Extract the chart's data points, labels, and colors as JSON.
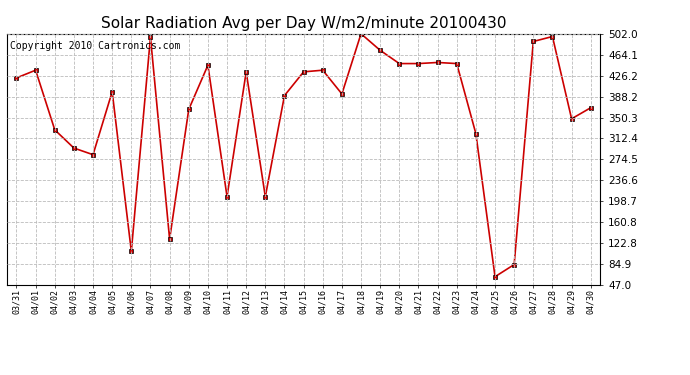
{
  "title": "Solar Radiation Avg per Day W/m2/minute 20100430",
  "copyright": "Copyright 2010 Cartronics.com",
  "x_labels": [
    "03/31",
    "04/01",
    "04/02",
    "04/03",
    "04/04",
    "04/05",
    "04/06",
    "04/07",
    "04/08",
    "04/09",
    "04/10",
    "04/11",
    "04/12",
    "04/13",
    "04/14",
    "04/15",
    "04/16",
    "04/17",
    "04/18",
    "04/19",
    "04/20",
    "04/21",
    "04/22",
    "04/23",
    "04/24",
    "04/25",
    "04/26",
    "04/27",
    "04/28",
    "04/29",
    "04/30"
  ],
  "y_values": [
    422,
    436,
    328,
    295,
    283,
    397,
    108,
    496,
    130,
    365,
    445,
    207,
    433,
    207,
    390,
    433,
    436,
    393,
    502,
    472,
    448,
    448,
    450,
    448,
    321,
    62,
    84,
    488,
    497,
    348,
    368
  ],
  "y_ticks": [
    47.0,
    84.9,
    122.8,
    160.8,
    198.7,
    236.6,
    274.5,
    312.4,
    350.3,
    388.2,
    426.2,
    464.1,
    502.0
  ],
  "line_color": "#cc0000",
  "marker_color": "#000000",
  "bg_color": "#ffffff",
  "grid_color": "#bbbbbb",
  "title_fontsize": 11,
  "copyright_fontsize": 7
}
